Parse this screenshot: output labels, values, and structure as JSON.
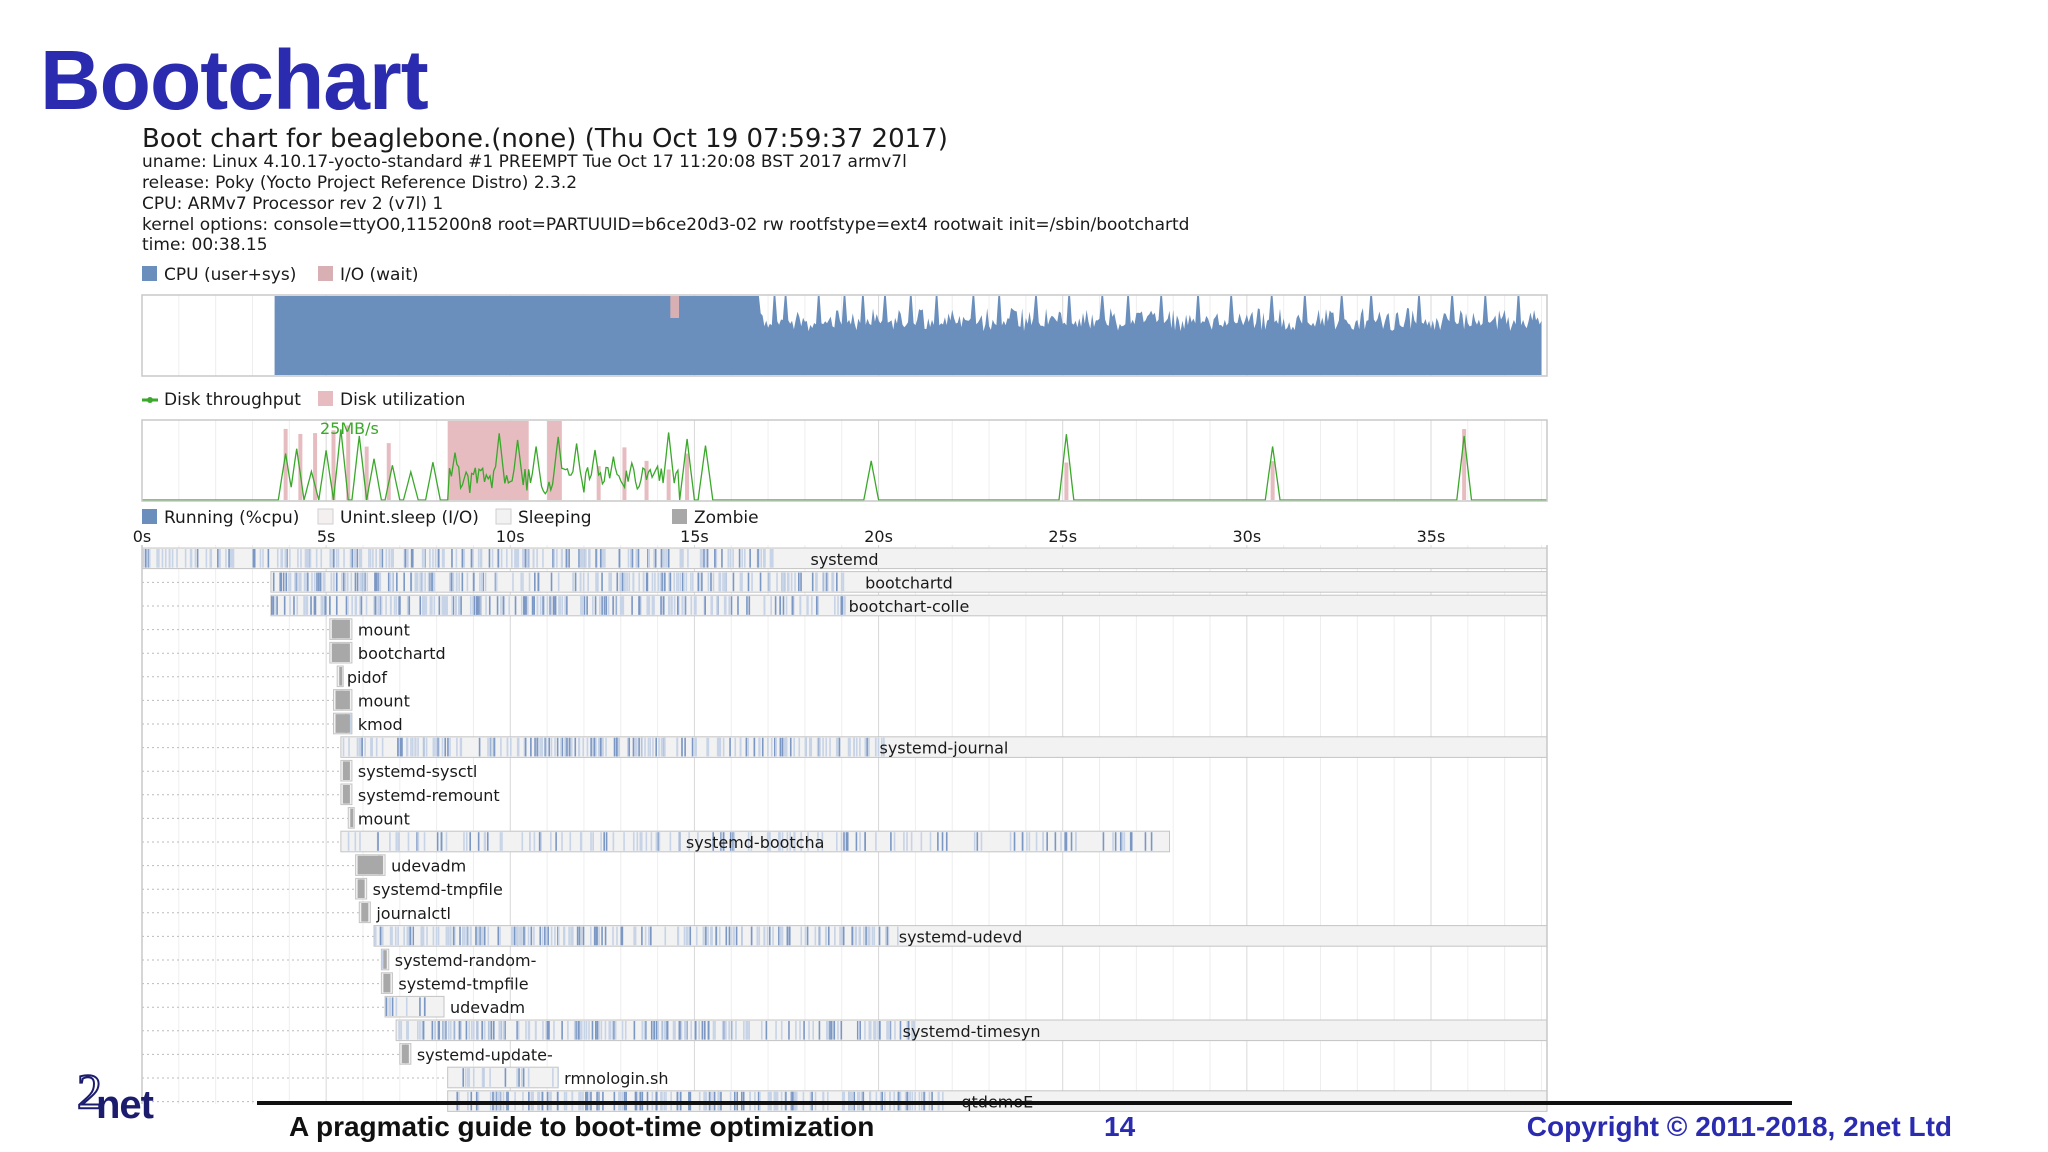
{
  "slide": {
    "title": "Bootchart",
    "logo_digit": "2",
    "logo_text": "net",
    "footer_left": "A pragmatic guide to boot-time optimization",
    "page_number": "14",
    "footer_right": "Copyright © 2011-2018, 2net Ltd"
  },
  "colors": {
    "title": "#2b2bb0",
    "cpu": "#6b8fbc",
    "io_wait": "#d8b0b4",
    "disk_throughput": "#3aa82a",
    "disk_utilization": "#e6bcc0",
    "sleeping_box": "#f2f2f2",
    "uninterruptible": "#d9cfd3",
    "zombie": "#a8a8a8"
  },
  "chart_data": {
    "type": "bootchart",
    "header": {
      "title": "Boot chart for beaglebone.(none) (Thu Oct 19 07:59:37 2017)",
      "info": [
        "uname: Linux 4.10.17-yocto-standard #1 PREEMPT Tue Oct 17 11:20:08 BST 2017 armv7l",
        "release: Poky (Yocto Project Reference Distro) 2.3.2",
        "CPU: ARMv7 Processor rev 2 (v7l) 1",
        "kernel options: console=ttyO0,115200n8 root=PARTUUID=b6ce20d3-02 rw rootfstype=ext4 rootwait init=/sbin/bootchartd",
        "time: 00:38.15"
      ]
    },
    "time_axis": {
      "unit": "s",
      "min": 0,
      "max": 38.15,
      "tick_labels": [
        "0s",
        "5s",
        "10s",
        "15s",
        "20s",
        "25s",
        "30s",
        "35s"
      ],
      "tick_values": [
        0,
        5,
        10,
        15,
        20,
        25,
        30,
        35
      ]
    },
    "cpu_panel": {
      "legend": [
        "CPU (user+sys)",
        "I/O (wait)"
      ],
      "cpu_start": 3.6,
      "cpu_end": 38.0,
      "io_wait_spikes": [
        14.4,
        14.5
      ],
      "idle_dips": [
        17.2,
        17.5,
        18.4,
        19.1,
        19.6,
        20.2,
        20.9,
        21.6,
        22.6,
        23.3,
        24.3,
        25.2,
        26.1,
        26.8,
        27.7,
        28.7,
        29.6,
        30.7,
        31.6,
        32.6,
        33.4,
        34.7,
        35.6,
        36.5,
        37.4
      ]
    },
    "disk_panel": {
      "legend": [
        "Disk throughput",
        "Disk utilization"
      ],
      "max_label": "25MB/s",
      "utilization_blocks": [
        [
          8.3,
          10.5
        ],
        [
          11.0,
          11.4
        ]
      ],
      "utilization_spikes": [
        3.9,
        4.3,
        4.7,
        5.2,
        5.6,
        6.1,
        6.7,
        12.4,
        13.1,
        13.7,
        14.3,
        14.8,
        25.1,
        30.7,
        35.9
      ],
      "throughput_spikes": [
        3.9,
        4.2,
        4.6,
        5.0,
        5.4,
        5.9,
        6.3,
        6.8,
        7.3,
        7.9,
        8.5,
        9.2,
        9.7,
        10.2,
        10.7,
        11.3,
        11.8,
        12.3,
        12.8,
        13.3,
        13.8,
        14.3,
        14.8,
        15.3,
        19.8,
        25.1,
        30.7,
        35.9
      ]
    },
    "process_panel": {
      "legend": [
        "Running (%cpu)",
        "Unint.sleep (I/O)",
        "Sleeping",
        "Zombie"
      ],
      "processes": [
        {
          "name": "systemd",
          "start": 0.0,
          "end": 38.15
        },
        {
          "name": "bootchartd",
          "start": 3.5,
          "end": 38.15
        },
        {
          "name": "bootchart-colle",
          "start": 3.5,
          "end": 38.15
        },
        {
          "name": "mount",
          "start": 5.1,
          "end": 5.7
        },
        {
          "name": "bootchartd",
          "start": 5.1,
          "end": 5.7
        },
        {
          "name": "pidof",
          "start": 5.3,
          "end": 5.4
        },
        {
          "name": "mount",
          "start": 5.2,
          "end": 5.7
        },
        {
          "name": "kmod",
          "start": 5.2,
          "end": 5.7
        },
        {
          "name": "systemd-journal",
          "start": 5.4,
          "end": 38.15
        },
        {
          "name": "systemd-sysctl",
          "start": 5.4,
          "end": 5.7
        },
        {
          "name": "systemd-remount",
          "start": 5.4,
          "end": 5.7
        },
        {
          "name": "mount",
          "start": 5.6,
          "end": 5.7
        },
        {
          "name": "systemd-bootcha",
          "start": 5.4,
          "end": 27.9
        },
        {
          "name": "udevadm",
          "start": 5.8,
          "end": 6.6
        },
        {
          "name": "systemd-tmpfile",
          "start": 5.8,
          "end": 6.1
        },
        {
          "name": "journalctl",
          "start": 5.9,
          "end": 6.2
        },
        {
          "name": "systemd-udevd",
          "start": 6.3,
          "end": 38.15
        },
        {
          "name": "systemd-random-",
          "start": 6.5,
          "end": 6.7
        },
        {
          "name": "systemd-tmpfile",
          "start": 6.5,
          "end": 6.8
        },
        {
          "name": "udevadm",
          "start": 6.6,
          "end": 8.2
        },
        {
          "name": "systemd-timesyn",
          "start": 6.9,
          "end": 38.15
        },
        {
          "name": "systemd-update-",
          "start": 7.0,
          "end": 7.3
        },
        {
          "name": "rmnologin.sh",
          "start": 8.3,
          "end": 11.3
        },
        {
          "name": "qtdemoE",
          "start": 8.3,
          "end": 38.15
        }
      ]
    }
  }
}
